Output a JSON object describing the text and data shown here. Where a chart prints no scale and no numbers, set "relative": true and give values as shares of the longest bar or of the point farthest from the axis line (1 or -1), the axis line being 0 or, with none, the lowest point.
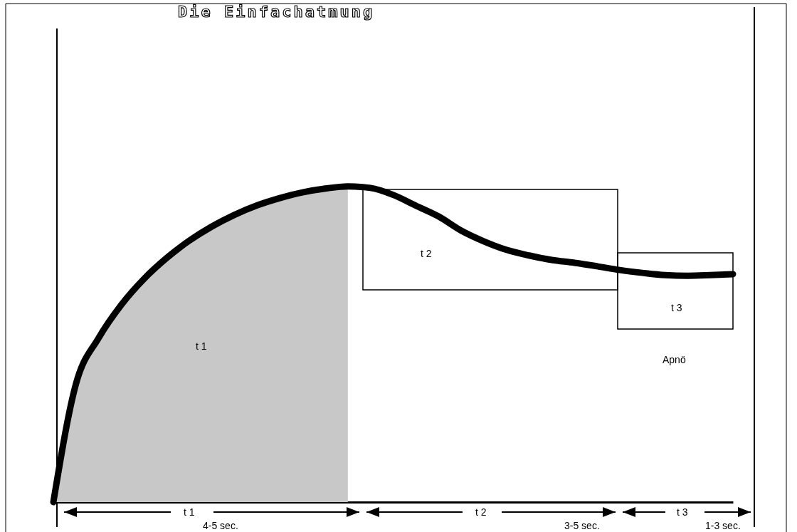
{
  "chart_data": {
    "type": "line",
    "title": "Die Einfachatmung",
    "relative": true,
    "categories": [
      null,
      null,
      null,
      null,
      null,
      null,
      null,
      null,
      null,
      null,
      null,
      null,
      null,
      null,
      null,
      null,
      null,
      null,
      null,
      null,
      null,
      null,
      null,
      null,
      null,
      null,
      null,
      null,
      null,
      null,
      null
    ],
    "series": [
      {
        "type": "area",
        "color": "#c8c8c8",
        "values": [
          0,
          0.375,
          0.52,
          0.625,
          0.707,
          0.773,
          0.828,
          0.873,
          0.91,
          0.94,
          0.963,
          0.981,
          0.993,
          1,
          null,
          null,
          null,
          null,
          null,
          null,
          null,
          null,
          null,
          null,
          null,
          null,
          null,
          null,
          null,
          null,
          null
        ]
      },
      {
        "color": "#000000",
        "values": [
          0,
          0.375,
          0.52,
          0.625,
          0.707,
          0.773,
          0.828,
          0.873,
          0.91,
          0.94,
          0.963,
          0.981,
          0.993,
          1,
          0.995,
          0.973,
          0.939,
          0.905,
          0.86,
          0.826,
          0.799,
          0.781,
          0.767,
          0.758,
          0.747,
          0.735,
          0.726,
          0.719,
          0.717,
          0.719,
          0.722
        ]
      }
    ],
    "annotations": [
      "t 1",
      "t 2",
      "t 3",
      "Apnö",
      "t 1",
      "4-5 sec.",
      "t 2",
      "3-5 sec.",
      "t 3",
      "1-3 sec."
    ]
  }
}
